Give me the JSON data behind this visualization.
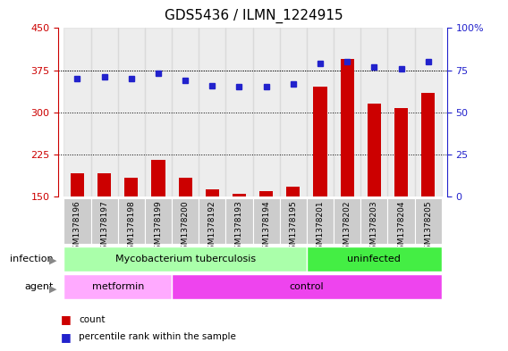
{
  "title": "GDS5436 / ILMN_1224915",
  "samples": [
    "GSM1378196",
    "GSM1378197",
    "GSM1378198",
    "GSM1378199",
    "GSM1378200",
    "GSM1378192",
    "GSM1378193",
    "GSM1378194",
    "GSM1378195",
    "GSM1378201",
    "GSM1378202",
    "GSM1378203",
    "GSM1378204",
    "GSM1378205"
  ],
  "counts": [
    192,
    191,
    183,
    215,
    183,
    163,
    155,
    160,
    168,
    345,
    395,
    315,
    308,
    335
  ],
  "percentiles": [
    70,
    71,
    70,
    73,
    69,
    66,
    65,
    65,
    67,
    79,
    80,
    77,
    76,
    80
  ],
  "ylim_left": [
    150,
    450
  ],
  "ylim_right": [
    0,
    100
  ],
  "yticks_left": [
    150,
    225,
    300,
    375,
    450
  ],
  "yticks_right": [
    0,
    25,
    50,
    75,
    100
  ],
  "bar_color": "#cc0000",
  "dot_color": "#2222cc",
  "bg_color": "#ffffff",
  "infection_groups": [
    {
      "label": "Mycobacterium tuberculosis",
      "start": 0,
      "end": 9,
      "color": "#aaffaa"
    },
    {
      "label": "uninfected",
      "start": 9,
      "end": 14,
      "color": "#44ee44"
    }
  ],
  "agent_groups": [
    {
      "label": "metformin",
      "start": 0,
      "end": 4,
      "color": "#ffaaff"
    },
    {
      "label": "control",
      "start": 4,
      "end": 14,
      "color": "#ee44ee"
    }
  ],
  "left_axis_color": "#cc0000",
  "right_axis_color": "#2222cc",
  "title_fontsize": 11
}
